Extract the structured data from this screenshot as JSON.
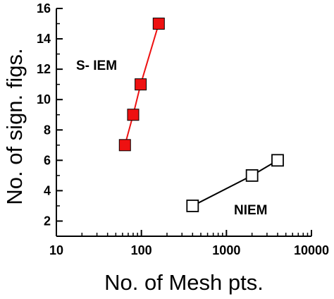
{
  "chart_data": {
    "type": "scatter",
    "title": "",
    "xlabel": "No. of Mesh pts.",
    "ylabel": "No. of sign. figs.",
    "xscale": "log",
    "xlim": [
      10,
      10000
    ],
    "ylim": [
      1,
      16
    ],
    "xticks": [
      10,
      100,
      1000,
      10000
    ],
    "xtick_labels": [
      "10",
      "100",
      "1000",
      "10000"
    ],
    "yticks": [
      2,
      4,
      6,
      8,
      10,
      12,
      14,
      16
    ],
    "ytick_labels": [
      "2",
      "4",
      "6",
      "8",
      "10",
      "12",
      "14",
      "16"
    ],
    "grid": false,
    "series": [
      {
        "name": "S- IEM",
        "color": "#ee1111",
        "marker": "filled-square",
        "x": [
          64,
          80,
          98,
          160
        ],
        "y": [
          7,
          9,
          11,
          15
        ]
      },
      {
        "name": "NIEM",
        "color": "#000000",
        "marker": "open-square",
        "x": [
          400,
          2000,
          4000
        ],
        "y": [
          3,
          5,
          6
        ]
      }
    ]
  }
}
